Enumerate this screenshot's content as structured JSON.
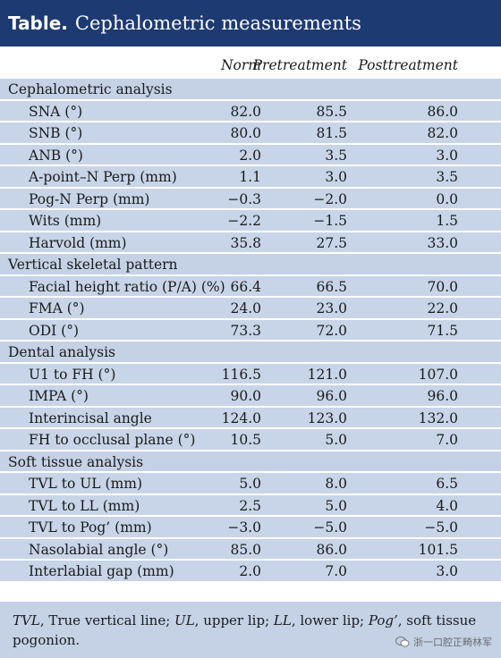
{
  "title": {
    "bold": "Table.",
    "rest": "Cephalometric measurements"
  },
  "columns": {
    "norm": "Norm",
    "pre": "Pretreatment",
    "post": "Posttreatment"
  },
  "sections": [
    {
      "label": "Cephalometric analysis",
      "rows": [
        {
          "label": "SNA (°)",
          "norm": "82.0",
          "pre": "85.5",
          "post": "86.0"
        },
        {
          "label": "SNB (°)",
          "norm": "80.0",
          "pre": "81.5",
          "post": "82.0"
        },
        {
          "label": "ANB (°)",
          "norm": "2.0",
          "pre": "3.5",
          "post": "3.0"
        },
        {
          "label": "A-point–N Perp (mm)",
          "norm": "1.1",
          "pre": "3.0",
          "post": "3.5"
        },
        {
          "label": "Pog-N Perp (mm)",
          "norm": "−0.3",
          "pre": "−2.0",
          "post": "0.0"
        },
        {
          "label": "Wits (mm)",
          "norm": "−2.2",
          "pre": "−1.5",
          "post": "1.5"
        },
        {
          "label": "Harvold (mm)",
          "norm": "35.8",
          "pre": "27.5",
          "post": "33.0"
        }
      ]
    },
    {
      "label": "Vertical skeletal pattern",
      "rows": [
        {
          "label": "Facial height ratio (P/A) (%)",
          "norm": "66.4",
          "pre": "66.5",
          "post": "70.0"
        },
        {
          "label": "FMA (°)",
          "norm": "24.0",
          "pre": "23.0",
          "post": "22.0"
        },
        {
          "label": "ODI (°)",
          "norm": "73.3",
          "pre": "72.0",
          "post": "71.5"
        }
      ]
    },
    {
      "label": "Dental analysis",
      "rows": [
        {
          "label": "U1 to FH (°)",
          "norm": "116.5",
          "pre": "121.0",
          "post": "107.0"
        },
        {
          "label": "IMPA (°)",
          "norm": "90.0",
          "pre": "96.0",
          "post": "96.0"
        },
        {
          "label": "Interincisal angle",
          "norm": "124.0",
          "pre": "123.0",
          "post": "132.0"
        },
        {
          "label": "FH to occlusal plane (°)",
          "norm": "10.5",
          "pre": "5.0",
          "post": "7.0"
        }
      ]
    },
    {
      "label": "Soft tissue analysis",
      "rows": [
        {
          "label": "TVL to UL (mm)",
          "norm": "5.0",
          "pre": "8.0",
          "post": "6.5"
        },
        {
          "label": "TVL to LL (mm)",
          "norm": "2.5",
          "pre": "5.0",
          "post": "4.0"
        },
        {
          "label": "TVL to Pog’ (mm)",
          "norm": "−3.0",
          "pre": "−5.0",
          "post": "−5.0"
        },
        {
          "label": "Nasolabial angle (°)",
          "norm": "85.0",
          "pre": "86.0",
          "post": "101.5"
        },
        {
          "label": "Interlabial gap (mm)",
          "norm": "2.0",
          "pre": "7.0",
          "post": "3.0"
        }
      ]
    }
  ],
  "footnote": {
    "tvl_abbr": "TVL",
    "tvl_def": ", True vertical line; ",
    "ul_abbr": "UL",
    "ul_def": ", upper lip; ",
    "ll_abbr": "LL",
    "ll_def": ", lower lip; ",
    "pog_abbr": "Pog’",
    "pog_def": ", soft tissue pogonion."
  },
  "watermark": {
    "text": "浙一口腔正畸林军",
    "icon": "wechat-icon"
  }
}
